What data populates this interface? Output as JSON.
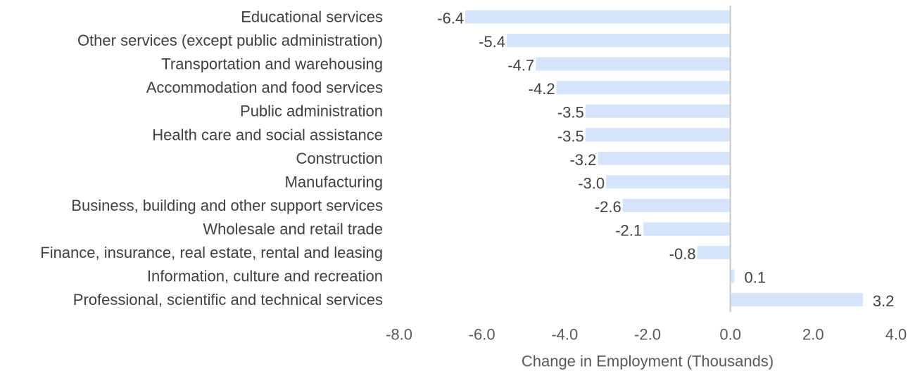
{
  "chart_data": {
    "type": "bar",
    "orientation": "horizontal",
    "categories": [
      "Educational services",
      "Other services (except public administration)",
      "Transportation and warehousing",
      "Accommodation and food services",
      "Public administration",
      "Health care and social assistance",
      "Construction",
      "Manufacturing",
      "Business, building and other support services",
      "Wholesale and retail trade",
      "Finance, insurance, real estate, rental and leasing",
      "Information, culture and recreation",
      "Professional, scientific and technical services"
    ],
    "values": [
      -6.4,
      -5.4,
      -4.7,
      -4.2,
      -3.5,
      -3.5,
      -3.2,
      -3.0,
      -2.6,
      -2.1,
      -0.8,
      0.1,
      3.2
    ],
    "data_labels": [
      "-6.4",
      "-5.4",
      "-4.7",
      "-4.2",
      "-3.5",
      "-3.5",
      "-3.2",
      "-3.0",
      "-2.6",
      "-2.1",
      "-0.8",
      "0.1",
      "3.2"
    ],
    "xlabel": "Change in Employment (Thousands)",
    "xlim": [
      -8.0,
      4.0
    ],
    "xticks": [
      -8.0,
      -6.0,
      -4.0,
      -2.0,
      0.0,
      2.0,
      4.0
    ],
    "xtick_labels": [
      "-8.0",
      "-6.0",
      "-4.0",
      "-2.0",
      "0.0",
      "2.0",
      "4.0"
    ],
    "grid": false,
    "legend": "none",
    "colors": {
      "bar": "#d6e4fb",
      "axis": "#c8c8c8",
      "label_text": "#404040",
      "tick_text": "#595959"
    }
  }
}
